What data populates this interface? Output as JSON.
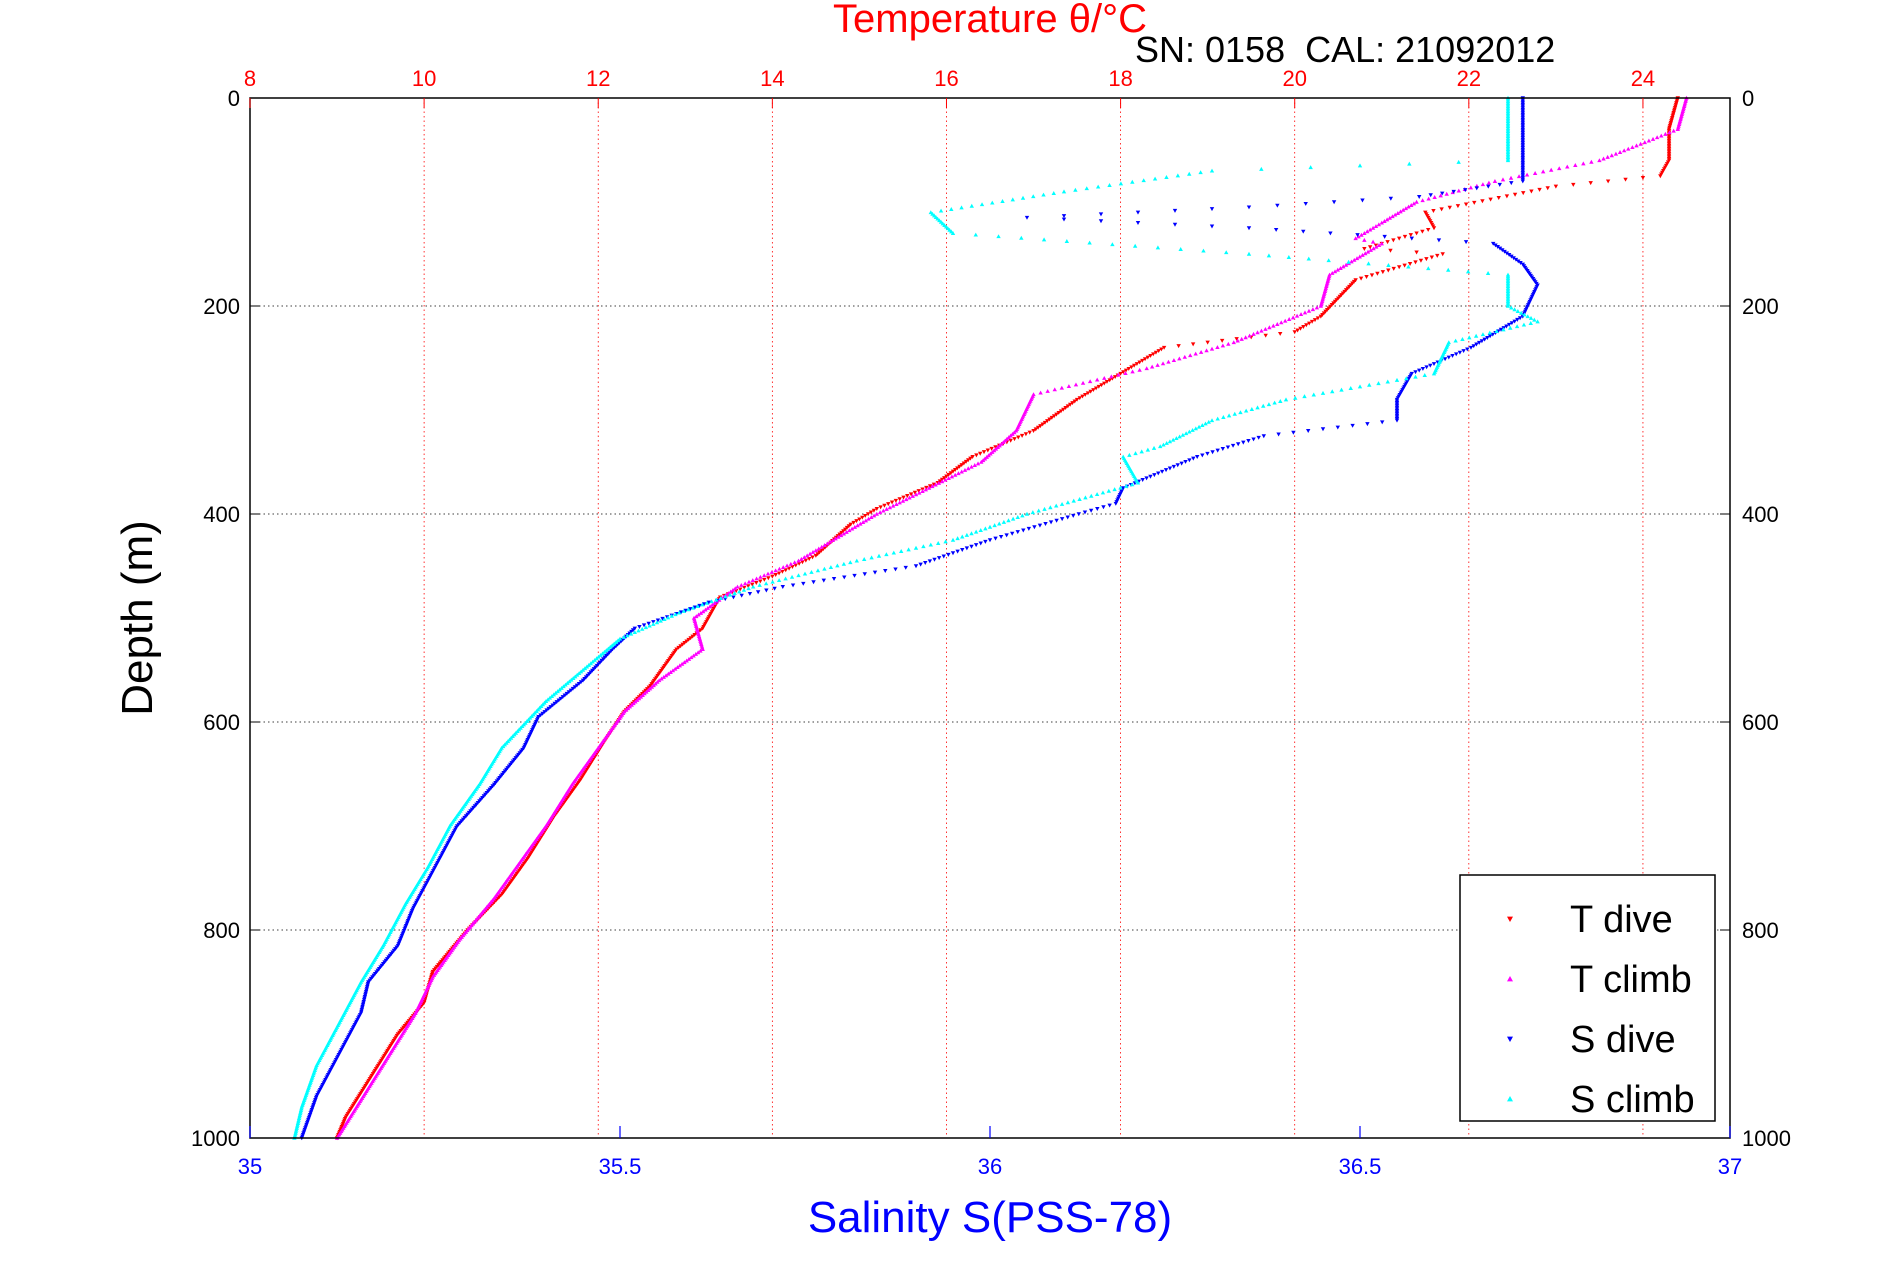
{
  "chart_data": {
    "type": "scatter",
    "title": "Temperature θ/°C",
    "subtitle": "SN: 0158  CAL: 21092012",
    "xlabel": "Salinity S(PSS-78)",
    "ylabel": "Depth (m)",
    "grid": true,
    "legend_position": "bottom-right",
    "y_axis": {
      "range": [
        0,
        1000
      ],
      "inverted": true,
      "ticks": [
        0,
        200,
        400,
        600,
        800,
        1000
      ],
      "tick_labels": [
        "0",
        "200",
        "400",
        "600",
        "800",
        "1000"
      ]
    },
    "x_axis_bottom": {
      "quantity": "salinity",
      "range": [
        35,
        37
      ],
      "ticks": [
        35,
        35.5,
        36,
        36.5,
        37
      ],
      "tick_labels": [
        "35",
        "35.5",
        "36",
        "36.5",
        "37"
      ],
      "color": "#0000ff"
    },
    "x_axis_top": {
      "quantity": "temperature",
      "range": [
        8,
        25
      ],
      "ticks": [
        8,
        10,
        12,
        14,
        16,
        18,
        20,
        22,
        24
      ],
      "tick_labels": [
        "8",
        "10",
        "12",
        "14",
        "16",
        "18",
        "20",
        "22",
        "24"
      ],
      "color": "#ff0000"
    },
    "series": [
      {
        "name": "T dive",
        "axis": "temperature",
        "color": "#ff0000",
        "marker": "triangle-down",
        "points": [
          [
            24.4,
            0
          ],
          [
            24.3,
            30
          ],
          [
            24.3,
            60
          ],
          [
            24.2,
            75
          ],
          [
            23.0,
            85
          ],
          [
            21.5,
            110
          ],
          [
            21.6,
            125
          ],
          [
            21.2,
            135
          ],
          [
            20.8,
            145
          ],
          [
            21.7,
            150
          ],
          [
            20.7,
            175
          ],
          [
            20.3,
            210
          ],
          [
            20.0,
            225
          ],
          [
            18.5,
            240
          ],
          [
            18.0,
            265
          ],
          [
            17.5,
            290
          ],
          [
            17.0,
            320
          ],
          [
            16.3,
            345
          ],
          [
            15.9,
            370
          ],
          [
            15.2,
            395
          ],
          [
            14.9,
            410
          ],
          [
            14.5,
            440
          ],
          [
            14.0,
            460
          ],
          [
            13.4,
            480
          ],
          [
            13.2,
            510
          ],
          [
            12.9,
            530
          ],
          [
            12.6,
            565
          ],
          [
            12.3,
            590
          ],
          [
            12.1,
            615
          ],
          [
            11.8,
            655
          ],
          [
            11.5,
            690
          ],
          [
            11.2,
            730
          ],
          [
            10.9,
            765
          ],
          [
            10.5,
            800
          ],
          [
            10.1,
            840
          ],
          [
            10.0,
            870
          ],
          [
            9.7,
            900
          ],
          [
            9.4,
            940
          ],
          [
            9.1,
            980
          ],
          [
            9.0,
            1000
          ]
        ]
      },
      {
        "name": "T climb",
        "axis": "temperature",
        "color": "#ff00ff",
        "marker": "triangle-up",
        "points": [
          [
            24.5,
            0
          ],
          [
            24.4,
            30
          ],
          [
            23.5,
            60
          ],
          [
            22.3,
            80
          ],
          [
            21.4,
            100
          ],
          [
            21.0,
            120
          ],
          [
            20.7,
            135
          ],
          [
            21.0,
            140
          ],
          [
            20.4,
            170
          ],
          [
            20.3,
            200
          ],
          [
            19.3,
            235
          ],
          [
            18.3,
            260
          ],
          [
            17.0,
            285
          ],
          [
            16.8,
            320
          ],
          [
            16.4,
            350
          ],
          [
            15.8,
            375
          ],
          [
            15.2,
            400
          ],
          [
            14.6,
            430
          ],
          [
            14.3,
            445
          ],
          [
            13.6,
            470
          ],
          [
            13.1,
            500
          ],
          [
            13.2,
            530
          ],
          [
            12.7,
            560
          ],
          [
            12.3,
            590
          ],
          [
            12.0,
            625
          ],
          [
            11.7,
            660
          ],
          [
            11.4,
            700
          ],
          [
            11.1,
            735
          ],
          [
            10.8,
            770
          ],
          [
            10.4,
            810
          ],
          [
            10.1,
            845
          ],
          [
            9.9,
            880
          ],
          [
            9.6,
            920
          ],
          [
            9.3,
            960
          ],
          [
            9.0,
            1000
          ]
        ]
      },
      {
        "name": "S dive",
        "axis": "salinity",
        "color": "#0000ff",
        "marker": "triangle-down",
        "points": [
          [
            36.72,
            0
          ],
          [
            36.72,
            40
          ],
          [
            36.72,
            80
          ],
          [
            36.58,
            95
          ],
          [
            36.35,
            105
          ],
          [
            36.05,
            115
          ],
          [
            36.35,
            125
          ],
          [
            36.68,
            140
          ],
          [
            36.72,
            160
          ],
          [
            36.74,
            180
          ],
          [
            36.72,
            210
          ],
          [
            36.65,
            240
          ],
          [
            36.57,
            265
          ],
          [
            36.55,
            290
          ],
          [
            36.55,
            310
          ],
          [
            36.37,
            325
          ],
          [
            36.28,
            345
          ],
          [
            36.18,
            375
          ],
          [
            36.17,
            390
          ],
          [
            36.12,
            400
          ],
          [
            36.0,
            425
          ],
          [
            35.9,
            450
          ],
          [
            35.72,
            470
          ],
          [
            35.62,
            485
          ],
          [
            35.52,
            510
          ],
          [
            35.49,
            530
          ],
          [
            35.45,
            560
          ],
          [
            35.39,
            595
          ],
          [
            35.37,
            625
          ],
          [
            35.33,
            660
          ],
          [
            35.28,
            700
          ],
          [
            35.25,
            740
          ],
          [
            35.22,
            780
          ],
          [
            35.2,
            815
          ],
          [
            35.16,
            850
          ],
          [
            35.15,
            880
          ],
          [
            35.12,
            920
          ],
          [
            35.09,
            960
          ],
          [
            35.07,
            1000
          ]
        ]
      },
      {
        "name": "S climb",
        "axis": "salinity",
        "color": "#00ffff",
        "marker": "triangle-up",
        "points": [
          [
            36.7,
            0
          ],
          [
            36.7,
            40
          ],
          [
            36.7,
            60
          ],
          [
            36.3,
            70
          ],
          [
            36.1,
            90
          ],
          [
            35.92,
            110
          ],
          [
            35.95,
            130
          ],
          [
            36.35,
            150
          ],
          [
            36.7,
            170
          ],
          [
            36.7,
            200
          ],
          [
            36.74,
            215
          ],
          [
            36.62,
            235
          ],
          [
            36.6,
            265
          ],
          [
            36.4,
            290
          ],
          [
            36.3,
            310
          ],
          [
            36.23,
            335
          ],
          [
            36.18,
            345
          ],
          [
            36.2,
            370
          ],
          [
            36.05,
            400
          ],
          [
            35.95,
            425
          ],
          [
            35.82,
            445
          ],
          [
            35.68,
            470
          ],
          [
            35.58,
            495
          ],
          [
            35.5,
            520
          ],
          [
            35.45,
            550
          ],
          [
            35.4,
            580
          ],
          [
            35.34,
            625
          ],
          [
            35.31,
            660
          ],
          [
            35.27,
            700
          ],
          [
            35.24,
            740
          ],
          [
            35.21,
            775
          ],
          [
            35.18,
            815
          ],
          [
            35.15,
            850
          ],
          [
            35.12,
            890
          ],
          [
            35.09,
            930
          ],
          [
            35.07,
            970
          ],
          [
            35.06,
            1000
          ]
        ]
      }
    ]
  }
}
